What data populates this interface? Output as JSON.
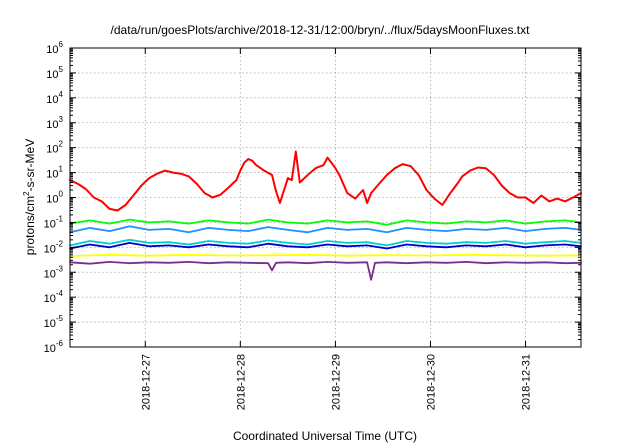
{
  "chart_data": {
    "type": "line",
    "title": "/data/run/goesPlots/archive/2018-12-31/12:00/bryn/../flux/5daysMoonFluxes.txt",
    "xlabel": "Coordinated Universal Time (UTC)",
    "ylabel": {
      "prefix": "protons/cm",
      "superscript": "2",
      "suffix": "-s-sr-MeV"
    },
    "yscale": "log",
    "ylim": [
      1e-06,
      1000000.0
    ],
    "xlim": [
      "2018-12-26 05:00",
      "2018-12-31 14:00"
    ],
    "grid": true,
    "y_ticks": [
      {
        "base": "10",
        "exp": "-6"
      },
      {
        "base": "10",
        "exp": "-5"
      },
      {
        "base": "10",
        "exp": "-4"
      },
      {
        "base": "10",
        "exp": "-3"
      },
      {
        "base": "10",
        "exp": "-2"
      },
      {
        "base": "10",
        "exp": "-1"
      },
      {
        "base": "10",
        "exp": "0"
      },
      {
        "base": "10",
        "exp": "1"
      },
      {
        "base": "10",
        "exp": "2"
      },
      {
        "base": "10",
        "exp": "3"
      },
      {
        "base": "10",
        "exp": "4"
      },
      {
        "base": "10",
        "exp": "5"
      },
      {
        "base": "10",
        "exp": "6"
      }
    ],
    "x_ticks": [
      "2018-12-27",
      "2018-12-28",
      "2018-12-29",
      "2018-12-30",
      "2018-12-31"
    ],
    "series": [
      {
        "color": "#ff0000",
        "x": [
          "2018-12-26 05:00",
          "2018-12-26 07:00",
          "2018-12-26 09:00",
          "2018-12-26 11:00",
          "2018-12-26 13:00",
          "2018-12-26 15:00",
          "2018-12-26 17:00",
          "2018-12-26 19:00",
          "2018-12-26 21:00",
          "2018-12-26 23:00",
          "2018-12-27 01:00",
          "2018-12-27 03:00",
          "2018-12-27 05:00",
          "2018-12-27 07:00",
          "2018-12-27 09:00",
          "2018-12-27 11:00",
          "2018-12-27 13:00",
          "2018-12-27 15:00",
          "2018-12-27 17:00",
          "2018-12-27 19:00",
          "2018-12-27 21:00",
          "2018-12-27 23:00",
          "2018-12-28 00:00",
          "2018-12-28 01:00",
          "2018-12-28 02:00",
          "2018-12-28 03:00",
          "2018-12-28 04:00",
          "2018-12-28 06:00",
          "2018-12-28 08:00",
          "2018-12-28 09:00",
          "2018-12-28 10:00",
          "2018-12-28 12:00",
          "2018-12-28 13:00",
          "2018-12-28 14:00",
          "2018-12-28 15:00",
          "2018-12-28 17:00",
          "2018-12-28 19:00",
          "2018-12-28 21:00",
          "2018-12-28 22:00",
          "2018-12-28 23:00",
          "2018-12-29 00:00",
          "2018-12-29 01:00",
          "2018-12-29 03:00",
          "2018-12-29 05:00",
          "2018-12-29 07:00",
          "2018-12-29 08:00",
          "2018-12-29 09:00",
          "2018-12-29 11:00",
          "2018-12-29 13:00",
          "2018-12-29 15:00",
          "2018-12-29 17:00",
          "2018-12-29 19:00",
          "2018-12-29 21:00",
          "2018-12-29 23:00",
          "2018-12-30 01:00",
          "2018-12-30 03:00",
          "2018-12-30 05:00",
          "2018-12-30 07:00",
          "2018-12-30 08:00",
          "2018-12-30 10:00",
          "2018-12-30 12:00",
          "2018-12-30 14:00",
          "2018-12-30 16:00",
          "2018-12-30 18:00",
          "2018-12-30 20:00",
          "2018-12-30 22:00",
          "2018-12-31 00:00",
          "2018-12-31 02:00",
          "2018-12-31 04:00",
          "2018-12-31 06:00",
          "2018-12-31 08:00",
          "2018-12-31 10:00",
          "2018-12-31 12:00",
          "2018-12-31 14:00"
        ],
        "y": [
          5.0,
          3.5,
          2.2,
          1.0,
          0.7,
          0.35,
          0.3,
          0.5,
          1.2,
          3.0,
          6.0,
          9.0,
          12,
          10,
          9,
          7,
          3.5,
          1.5,
          1.0,
          1.3,
          2.5,
          5.0,
          12,
          25,
          35,
          30,
          20,
          12,
          8,
          1.8,
          0.6,
          6.0,
          5.0,
          70,
          4.0,
          8.0,
          15,
          20,
          40,
          25,
          15,
          8.0,
          1.5,
          0.9,
          2.0,
          0.6,
          1.5,
          3.5,
          8.0,
          15,
          22,
          18,
          8.0,
          2.0,
          0.9,
          0.5,
          1.5,
          4.0,
          7.0,
          12,
          16,
          15,
          8.0,
          3.0,
          1.5,
          1.0,
          1.0,
          0.6,
          1.2,
          0.7,
          0.9,
          0.7,
          1.0,
          1.5
        ]
      },
      {
        "color": "#00ff00",
        "x": [
          "2018-12-26 05:00",
          "2018-12-26 10:00",
          "2018-12-26 15:00",
          "2018-12-26 20:00",
          "2018-12-27 01:00",
          "2018-12-27 06:00",
          "2018-12-27 11:00",
          "2018-12-27 16:00",
          "2018-12-27 21:00",
          "2018-12-28 02:00",
          "2018-12-28 07:00",
          "2018-12-28 12:00",
          "2018-12-28 17:00",
          "2018-12-28 22:00",
          "2018-12-29 03:00",
          "2018-12-29 08:00",
          "2018-12-29 13:00",
          "2018-12-29 18:00",
          "2018-12-29 23:00",
          "2018-12-30 04:00",
          "2018-12-30 09:00",
          "2018-12-30 14:00",
          "2018-12-30 19:00",
          "2018-12-31 00:00",
          "2018-12-31 05:00",
          "2018-12-31 10:00",
          "2018-12-31 14:00"
        ],
        "y": [
          0.09,
          0.12,
          0.09,
          0.13,
          0.1,
          0.11,
          0.09,
          0.12,
          0.1,
          0.09,
          0.13,
          0.1,
          0.09,
          0.12,
          0.1,
          0.11,
          0.08,
          0.12,
          0.1,
          0.09,
          0.11,
          0.1,
          0.12,
          0.09,
          0.11,
          0.12,
          0.1
        ]
      },
      {
        "color": "#1e90ff",
        "x": [
          "2018-12-26 05:00",
          "2018-12-26 10:00",
          "2018-12-26 15:00",
          "2018-12-26 20:00",
          "2018-12-27 01:00",
          "2018-12-27 06:00",
          "2018-12-27 11:00",
          "2018-12-27 16:00",
          "2018-12-27 21:00",
          "2018-12-28 02:00",
          "2018-12-28 07:00",
          "2018-12-28 12:00",
          "2018-12-28 17:00",
          "2018-12-28 22:00",
          "2018-12-29 03:00",
          "2018-12-29 08:00",
          "2018-12-29 13:00",
          "2018-12-29 18:00",
          "2018-12-29 23:00",
          "2018-12-30 04:00",
          "2018-12-30 09:00",
          "2018-12-30 14:00",
          "2018-12-30 19:00",
          "2018-12-31 00:00",
          "2018-12-31 05:00",
          "2018-12-31 10:00",
          "2018-12-31 14:00"
        ],
        "y": [
          0.04,
          0.06,
          0.045,
          0.07,
          0.05,
          0.055,
          0.04,
          0.06,
          0.05,
          0.045,
          0.065,
          0.05,
          0.04,
          0.06,
          0.05,
          0.055,
          0.04,
          0.06,
          0.05,
          0.045,
          0.055,
          0.05,
          0.06,
          0.045,
          0.055,
          0.06,
          0.05
        ]
      },
      {
        "color": "#00ced1",
        "x": [
          "2018-12-26 05:00",
          "2018-12-26 10:00",
          "2018-12-26 15:00",
          "2018-12-26 20:00",
          "2018-12-27 01:00",
          "2018-12-27 06:00",
          "2018-12-27 11:00",
          "2018-12-27 16:00",
          "2018-12-27 21:00",
          "2018-12-28 02:00",
          "2018-12-28 07:00",
          "2018-12-28 12:00",
          "2018-12-28 17:00",
          "2018-12-28 22:00",
          "2018-12-29 03:00",
          "2018-12-29 08:00",
          "2018-12-29 13:00",
          "2018-12-29 18:00",
          "2018-12-29 23:00",
          "2018-12-30 04:00",
          "2018-12-30 09:00",
          "2018-12-30 14:00",
          "2018-12-30 19:00",
          "2018-12-31 00:00",
          "2018-12-31 05:00",
          "2018-12-31 10:00",
          "2018-12-31 14:00"
        ],
        "y": [
          0.012,
          0.018,
          0.014,
          0.02,
          0.015,
          0.016,
          0.013,
          0.018,
          0.015,
          0.014,
          0.019,
          0.015,
          0.013,
          0.018,
          0.015,
          0.016,
          0.012,
          0.018,
          0.015,
          0.014,
          0.016,
          0.015,
          0.018,
          0.014,
          0.016,
          0.018,
          0.015
        ]
      },
      {
        "color": "#0000cd",
        "x": [
          "2018-12-26 05:00",
          "2018-12-26 10:00",
          "2018-12-26 15:00",
          "2018-12-26 20:00",
          "2018-12-27 01:00",
          "2018-12-27 06:00",
          "2018-12-27 11:00",
          "2018-12-27 16:00",
          "2018-12-27 21:00",
          "2018-12-28 02:00",
          "2018-12-28 07:00",
          "2018-12-28 12:00",
          "2018-12-28 17:00",
          "2018-12-28 22:00",
          "2018-12-29 03:00",
          "2018-12-29 08:00",
          "2018-12-29 13:00",
          "2018-12-29 18:00",
          "2018-12-29 23:00",
          "2018-12-30 04:00",
          "2018-12-30 09:00",
          "2018-12-30 14:00",
          "2018-12-30 19:00",
          "2018-12-31 00:00",
          "2018-12-31 05:00",
          "2018-12-31 10:00",
          "2018-12-31 14:00"
        ],
        "y": [
          0.009,
          0.013,
          0.01,
          0.015,
          0.011,
          0.012,
          0.01,
          0.013,
          0.011,
          0.01,
          0.014,
          0.011,
          0.01,
          0.013,
          0.011,
          0.012,
          0.009,
          0.013,
          0.011,
          0.01,
          0.012,
          0.011,
          0.013,
          0.01,
          0.012,
          0.013,
          0.011
        ]
      },
      {
        "color": "#ffff00",
        "x": [
          "2018-12-26 05:00",
          "2018-12-26 15:00",
          "2018-12-27 01:00",
          "2018-12-27 11:00",
          "2018-12-27 21:00",
          "2018-12-28 07:00",
          "2018-12-28 17:00",
          "2018-12-29 03:00",
          "2018-12-29 13:00",
          "2018-12-29 23:00",
          "2018-12-30 09:00",
          "2018-12-30 19:00",
          "2018-12-31 05:00",
          "2018-12-31 14:00"
        ],
        "y": [
          0.0045,
          0.005,
          0.0046,
          0.005,
          0.0047,
          0.0048,
          0.005,
          0.0046,
          0.0049,
          0.0047,
          0.005,
          0.0048,
          0.0046,
          0.0048
        ]
      },
      {
        "color": "#7b2d8b",
        "x": [
          "2018-12-26 05:00",
          "2018-12-26 10:00",
          "2018-12-26 15:00",
          "2018-12-26 20:00",
          "2018-12-27 01:00",
          "2018-12-27 06:00",
          "2018-12-27 11:00",
          "2018-12-27 16:00",
          "2018-12-27 21:00",
          "2018-12-28 02:00",
          "2018-12-28 07:00",
          "2018-12-28 08:00",
          "2018-12-28 09:00",
          "2018-12-28 12:00",
          "2018-12-28 17:00",
          "2018-12-28 22:00",
          "2018-12-29 03:00",
          "2018-12-29 08:00",
          "2018-12-29 09:00",
          "2018-12-29 10:00",
          "2018-12-29 13:00",
          "2018-12-29 18:00",
          "2018-12-29 23:00",
          "2018-12-30 04:00",
          "2018-12-30 09:00",
          "2018-12-30 14:00",
          "2018-12-30 19:00",
          "2018-12-31 00:00",
          "2018-12-31 05:00",
          "2018-12-31 10:00",
          "2018-12-31 14:00"
        ],
        "y": [
          0.0025,
          0.0022,
          0.0026,
          0.0023,
          0.0025,
          0.0024,
          0.0026,
          0.0023,
          0.0025,
          0.0024,
          0.0023,
          0.0012,
          0.0024,
          0.0025,
          0.0023,
          0.0026,
          0.0024,
          0.0025,
          0.0005,
          0.0024,
          0.0025,
          0.0023,
          0.0025,
          0.0024,
          0.0026,
          0.0023,
          0.0025,
          0.0024,
          0.0025,
          0.0023,
          0.0024
        ]
      }
    ]
  }
}
